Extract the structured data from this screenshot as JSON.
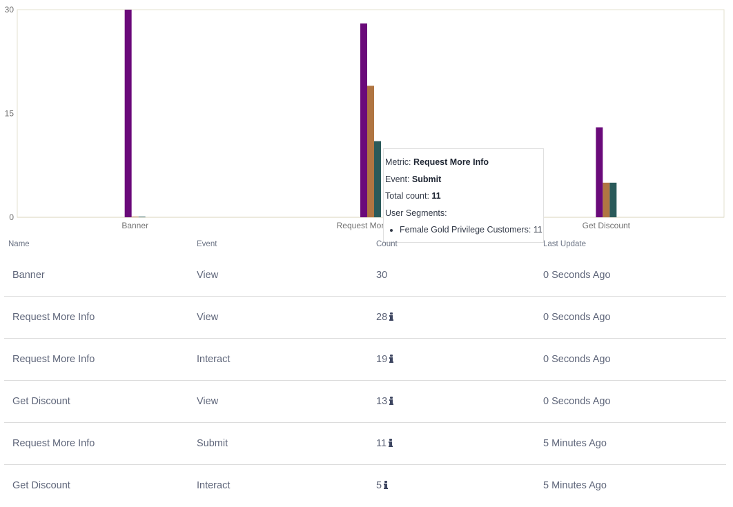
{
  "chart_data": {
    "type": "bar",
    "categories": [
      "Banner",
      "Request More Info",
      "Get Discount"
    ],
    "series": [
      {
        "event": "View",
        "color": "#6a0a7a",
        "values": [
          30,
          28,
          13
        ]
      },
      {
        "event": "Interact",
        "color": "#b07542",
        "values": [
          0,
          19,
          5
        ]
      },
      {
        "event": "Submit",
        "color": "#2a5a5a",
        "values": [
          0,
          11,
          5
        ]
      }
    ],
    "ylim": [
      0,
      30
    ],
    "yticks": [
      0,
      15,
      30
    ],
    "grid": false
  },
  "tooltip": {
    "metric_label": "Metric: ",
    "metric_value": "Request More Info",
    "event_label": "Event: ",
    "event_value": "Submit",
    "count_label": "Total count: ",
    "count_value": "11",
    "segments_label": "User Segments:",
    "segments": [
      "Female Gold Privilege Customers: 11"
    ]
  },
  "table": {
    "headers": {
      "name": "Name",
      "event": "Event",
      "count": "Count",
      "update": "Last Update"
    },
    "rows": [
      {
        "name": "Banner",
        "event": "View",
        "count": "30",
        "info": false,
        "update": "0 Seconds Ago"
      },
      {
        "name": "Request More Info",
        "event": "View",
        "count": "28",
        "info": true,
        "update": "0 Seconds Ago"
      },
      {
        "name": "Request More Info",
        "event": "Interact",
        "count": "19",
        "info": true,
        "update": "0 Seconds Ago"
      },
      {
        "name": "Get Discount",
        "event": "View",
        "count": "13",
        "info": true,
        "update": "0 Seconds Ago"
      },
      {
        "name": "Request More Info",
        "event": "Submit",
        "count": "11",
        "info": true,
        "update": "5 Minutes Ago"
      },
      {
        "name": "Get Discount",
        "event": "Interact",
        "count": "5",
        "info": true,
        "update": "5 Minutes Ago"
      }
    ]
  }
}
